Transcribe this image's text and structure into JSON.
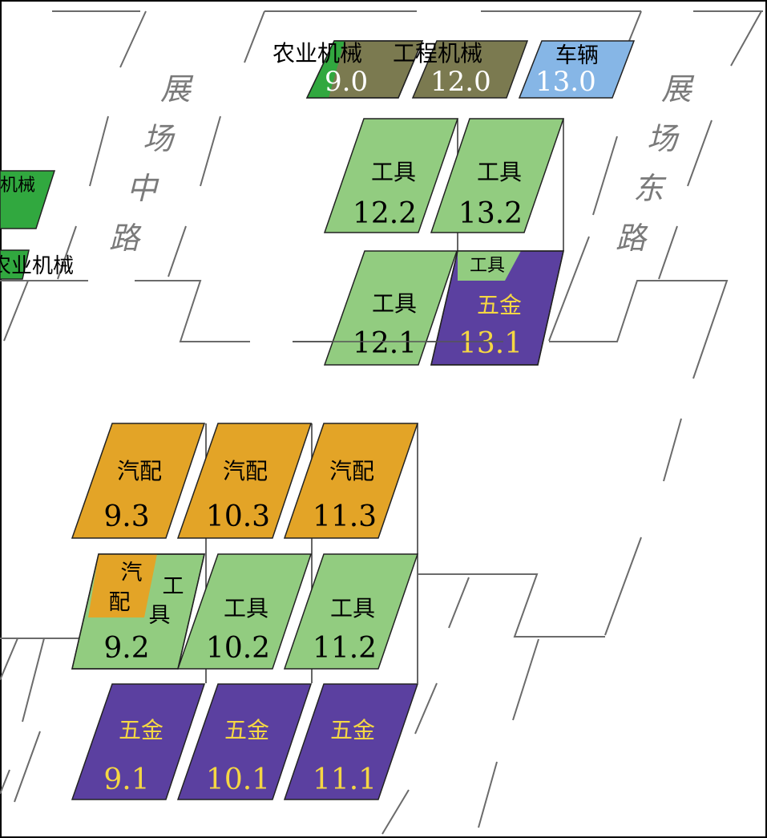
{
  "map": {
    "roads": [
      {
        "id": "mid",
        "name": "展场中路",
        "chars": [
          "展",
          "场",
          "中",
          "路"
        ]
      },
      {
        "id": "east",
        "name": "展场东路",
        "chars": [
          "展",
          "场",
          "东",
          "路"
        ]
      }
    ],
    "legend_top": {
      "agri": {
        "label": "农业机械",
        "hall": "9.0"
      },
      "eng": {
        "label": "工程机械",
        "hall": "12.0"
      },
      "vehicle": {
        "label": "车辆",
        "hall": "13.0"
      }
    },
    "left_partial": {
      "top": {
        "label": "机械"
      },
      "bottom": {
        "label": "农业机械"
      }
    },
    "halls": {
      "h12_2": {
        "category": "工具",
        "number": "12.2"
      },
      "h13_2": {
        "category": "工具",
        "number": "13.2"
      },
      "h12_1": {
        "category": "工具",
        "number": "12.1"
      },
      "h13_1": {
        "category": "五金",
        "sub_category": "工具",
        "number": "13.1"
      },
      "h9_3": {
        "category": "汽配",
        "number": "9.3"
      },
      "h10_3": {
        "category": "汽配",
        "number": "10.3"
      },
      "h11_3": {
        "category": "汽配",
        "number": "11.3"
      },
      "h9_2": {
        "category_a": [
          "汽",
          "配"
        ],
        "category_b": [
          "工",
          "具"
        ],
        "number": "9.2"
      },
      "h10_2": {
        "category": "工具",
        "number": "10.2"
      },
      "h11_2": {
        "category": "工具",
        "number": "11.2"
      },
      "h9_1": {
        "category": "五金",
        "number": "9.1"
      },
      "h10_1": {
        "category": "五金",
        "number": "10.1"
      },
      "h11_1": {
        "category": "五金",
        "number": "11.1"
      }
    },
    "colors": {
      "tools": "#92cc80",
      "hardware": "#5b40a0",
      "auto_parts": "#e3a427",
      "agri": "#31a83f",
      "engineering": "#7b7a50",
      "vehicle": "#86b6e6",
      "hardware_text": "#f5d743",
      "road_line": "#666666"
    }
  }
}
